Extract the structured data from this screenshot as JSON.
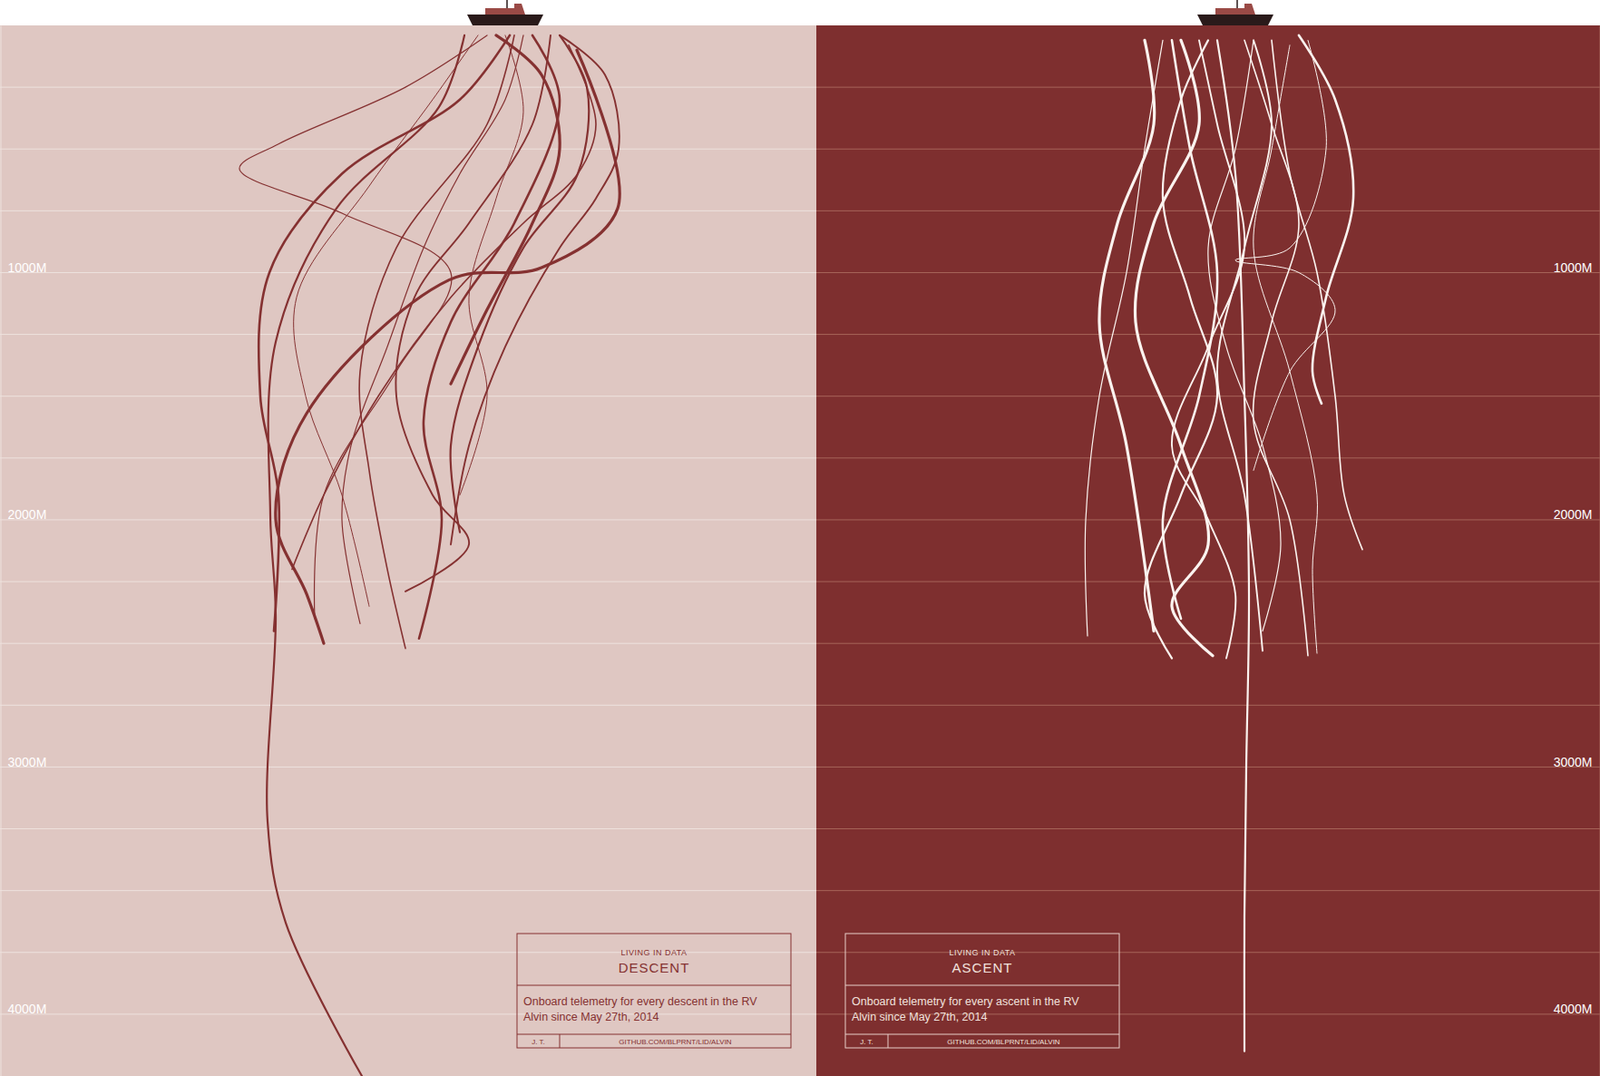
{
  "chart_data": [
    {
      "type": "line",
      "subtitle": "LIVING IN DATA",
      "title": "DESCENT",
      "description": [
        "Onboard telemetry for every descent in the RV",
        "Alvin since May 27th, 2014"
      ],
      "credit": "J. T.",
      "source": "GITHUB.COM/BLPRNT/LID/ALVIN",
      "color": "#853131",
      "xlim": [
        -557,
        343
      ],
      "ylim": [
        0,
        4250
      ],
      "yticks": [
        {
          "value": 1000,
          "label": "1000M"
        },
        {
          "value": 2000,
          "label": "2000M"
        },
        {
          "value": 3000,
          "label": "3000M"
        },
        {
          "value": 4000,
          "label": "4000M"
        }
      ],
      "gridlines": [
        250,
        500,
        750,
        1000,
        1250,
        1500,
        1750,
        2000,
        2250,
        2500,
        2750,
        3000,
        3250,
        3500,
        3750,
        4000
      ],
      "tick_labels": "y",
      "series": [
        {
          "x": [
            -45,
            -73,
            -186,
            -253,
            -259,
            -253,
            -262,
            -242,
            -158
          ],
          "values": [
            40,
            330,
            740,
            1280,
            1980,
            2390,
            3220,
            3630,
            4250
          ]
        },
        {
          "x": [
            -20,
            -110,
            -250,
            -293,
            -180,
            -60,
            -120,
            -200,
            -210
          ],
          "values": [
            40,
            250,
            480,
            580,
            760,
            1000,
            1400,
            1900,
            2400
          ]
        },
        {
          "x": [
            79,
            124,
            40,
            -62,
            -219,
            -253,
            -219,
            -200
          ],
          "values": [
            100,
            740,
            980,
            1030,
            1570,
            2000,
            2300,
            2500
          ]
        },
        {
          "x": [
            10,
            -20,
            -120,
            -160,
            -150,
            -130,
            -110
          ],
          "values": [
            40,
            400,
            900,
            1400,
            1800,
            2200,
            2520
          ]
        },
        {
          "x": [
            30,
            60,
            10,
            -60,
            -90,
            -70,
            -95
          ],
          "values": [
            40,
            300,
            800,
            1200,
            1600,
            2000,
            2480
          ]
        },
        {
          "x": [
            -30,
            -80,
            -150,
            -230,
            -220,
            -180,
            -150
          ],
          "values": [
            40,
            300,
            650,
            1100,
            1500,
            1900,
            2350
          ]
        },
        {
          "x": [
            50,
            30,
            -40,
            -100,
            -120,
            -80,
            -40,
            -110
          ],
          "values": [
            40,
            400,
            800,
            1100,
            1500,
            1900,
            2100,
            2290
          ]
        },
        {
          "x": [
            60,
            90,
            80,
            20,
            -30,
            -60,
            -50
          ],
          "values": [
            40,
            250,
            600,
            900,
            1300,
            1700,
            2050
          ]
        },
        {
          "x": [
            20,
            0,
            -50,
            -90,
            -130,
            -170,
            -180,
            -160
          ],
          "values": [
            40,
            300,
            600,
            900,
            1300,
            1700,
            2000,
            2420
          ]
        },
        {
          "x": [
            -10,
            40,
            60,
            30,
            -20,
            -60
          ],
          "values": [
            40,
            200,
            500,
            800,
            1150,
            1450
          ]
        },
        {
          "x": [
            70,
            100,
            80,
            20,
            -60,
            -140,
            -200,
            -235
          ],
          "values": [
            80,
            400,
            600,
            800,
            1100,
            1500,
            1900,
            2200
          ]
        },
        {
          "x": [
            5,
            -50,
            -180,
            -260,
            -270,
            -250,
            -255
          ],
          "values": [
            40,
            300,
            600,
            1000,
            1500,
            1900,
            2450
          ]
        },
        {
          "x": [
            0,
            20,
            -10,
            -40,
            -20,
            -50
          ],
          "values": [
            40,
            350,
            700,
            1100,
            1500,
            1900
          ]
        },
        {
          "x": [
            60,
            110,
            125,
            100,
            60,
            0,
            -40,
            -60
          ],
          "values": [
            40,
            200,
            500,
            700,
            900,
            1300,
            1700,
            2100
          ]
        }
      ]
    },
    {
      "type": "line",
      "subtitle": "LIVING IN DATA",
      "title": "ASCENT",
      "description": [
        "Onboard telemetry for every ascent in the RV",
        "Alvin since May 27th, 2014"
      ],
      "credit": "J. T.",
      "source": "GITHUB.COM/BLPRNT/LID/ALVIN",
      "color": "#fbf3ef",
      "xlim": [
        -462,
        402
      ],
      "ylim": [
        0,
        4250
      ],
      "yticks": [
        {
          "value": 1000,
          "label": "1000M"
        },
        {
          "value": 2000,
          "label": "2000M"
        },
        {
          "value": 3000,
          "label": "3000M"
        },
        {
          "value": 4000,
          "label": "4000M"
        }
      ],
      "gridlines": [
        250,
        500,
        750,
        1000,
        1250,
        1500,
        1750,
        2000,
        2250,
        2500,
        2750,
        3000,
        3250,
        3500,
        3750,
        4000
      ],
      "tick_labels": "y",
      "series": [
        {
          "x": [
            -20,
            0,
            10,
            15,
            12,
            10,
            10
          ],
          "values": [
            60,
            600,
            1500,
            2300,
            3000,
            3600,
            4150
          ]
        },
        {
          "x": [
            -80,
            -100,
            -120,
            -150,
            -165,
            -163
          ],
          "values": [
            60,
            500,
            1000,
            1500,
            2000,
            2470
          ]
        },
        {
          "x": [
            -60,
            -40,
            -90,
            -110,
            -60,
            -30,
            -70,
            -25
          ],
          "values": [
            60,
            400,
            800,
            1200,
            1700,
            2100,
            2350,
            2550
          ]
        },
        {
          "x": [
            40,
            60,
            90,
            110,
            120,
            140
          ],
          "values": [
            60,
            600,
            1000,
            1500,
            1900,
            2120
          ]
        },
        {
          "x": [
            70,
            110,
            130,
            100,
            85,
            95
          ],
          "values": [
            40,
            300,
            700,
            1100,
            1400,
            1530
          ]
        },
        {
          "x": [
            60,
            40,
            20,
            60,
            90,
            85,
            90
          ],
          "values": [
            80,
            500,
            900,
            1400,
            1900,
            2200,
            2540
          ]
        },
        {
          "x": [
            -40,
            -20,
            10,
            -30,
            -70,
            -30,
            0,
            -10
          ],
          "values": [
            60,
            400,
            900,
            1300,
            1700,
            2000,
            2300,
            2560
          ]
        },
        {
          "x": [
            -30,
            -60,
            -80,
            -50,
            -20,
            -60,
            -100,
            -70
          ],
          "values": [
            60,
            300,
            700,
            1100,
            1500,
            1900,
            2300,
            2560
          ]
        },
        {
          "x": [
            20,
            0,
            -30,
            -10,
            30,
            50,
            30
          ],
          "values": [
            60,
            500,
            900,
            1300,
            1700,
            2100,
            2450
          ]
        },
        {
          "x": [
            -100,
            -90,
            -130,
            -150,
            -120,
            -90
          ],
          "values": [
            60,
            400,
            800,
            1200,
            1700,
            2450
          ]
        },
        {
          "x": [
            10,
            40,
            70,
            40,
            20,
            60,
            80
          ],
          "values": [
            60,
            400,
            800,
            1200,
            1600,
            2000,
            2550
          ]
        },
        {
          "x": [
            -70,
            -50,
            -20,
            -40,
            -80,
            -60
          ],
          "values": [
            60,
            500,
            1000,
            1500,
            2000,
            2400
          ]
        },
        {
          "x": [
            80,
            100,
            60,
            0,
            70,
            110,
            60,
            20
          ],
          "values": [
            60,
            500,
            900,
            950,
            1000,
            1150,
            1400,
            1800
          ]
        },
        {
          "x": [
            20,
            40,
            10,
            -20,
            10,
            30
          ],
          "values": [
            60,
            400,
            900,
            1400,
            1900,
            2530
          ]
        }
      ]
    }
  ]
}
